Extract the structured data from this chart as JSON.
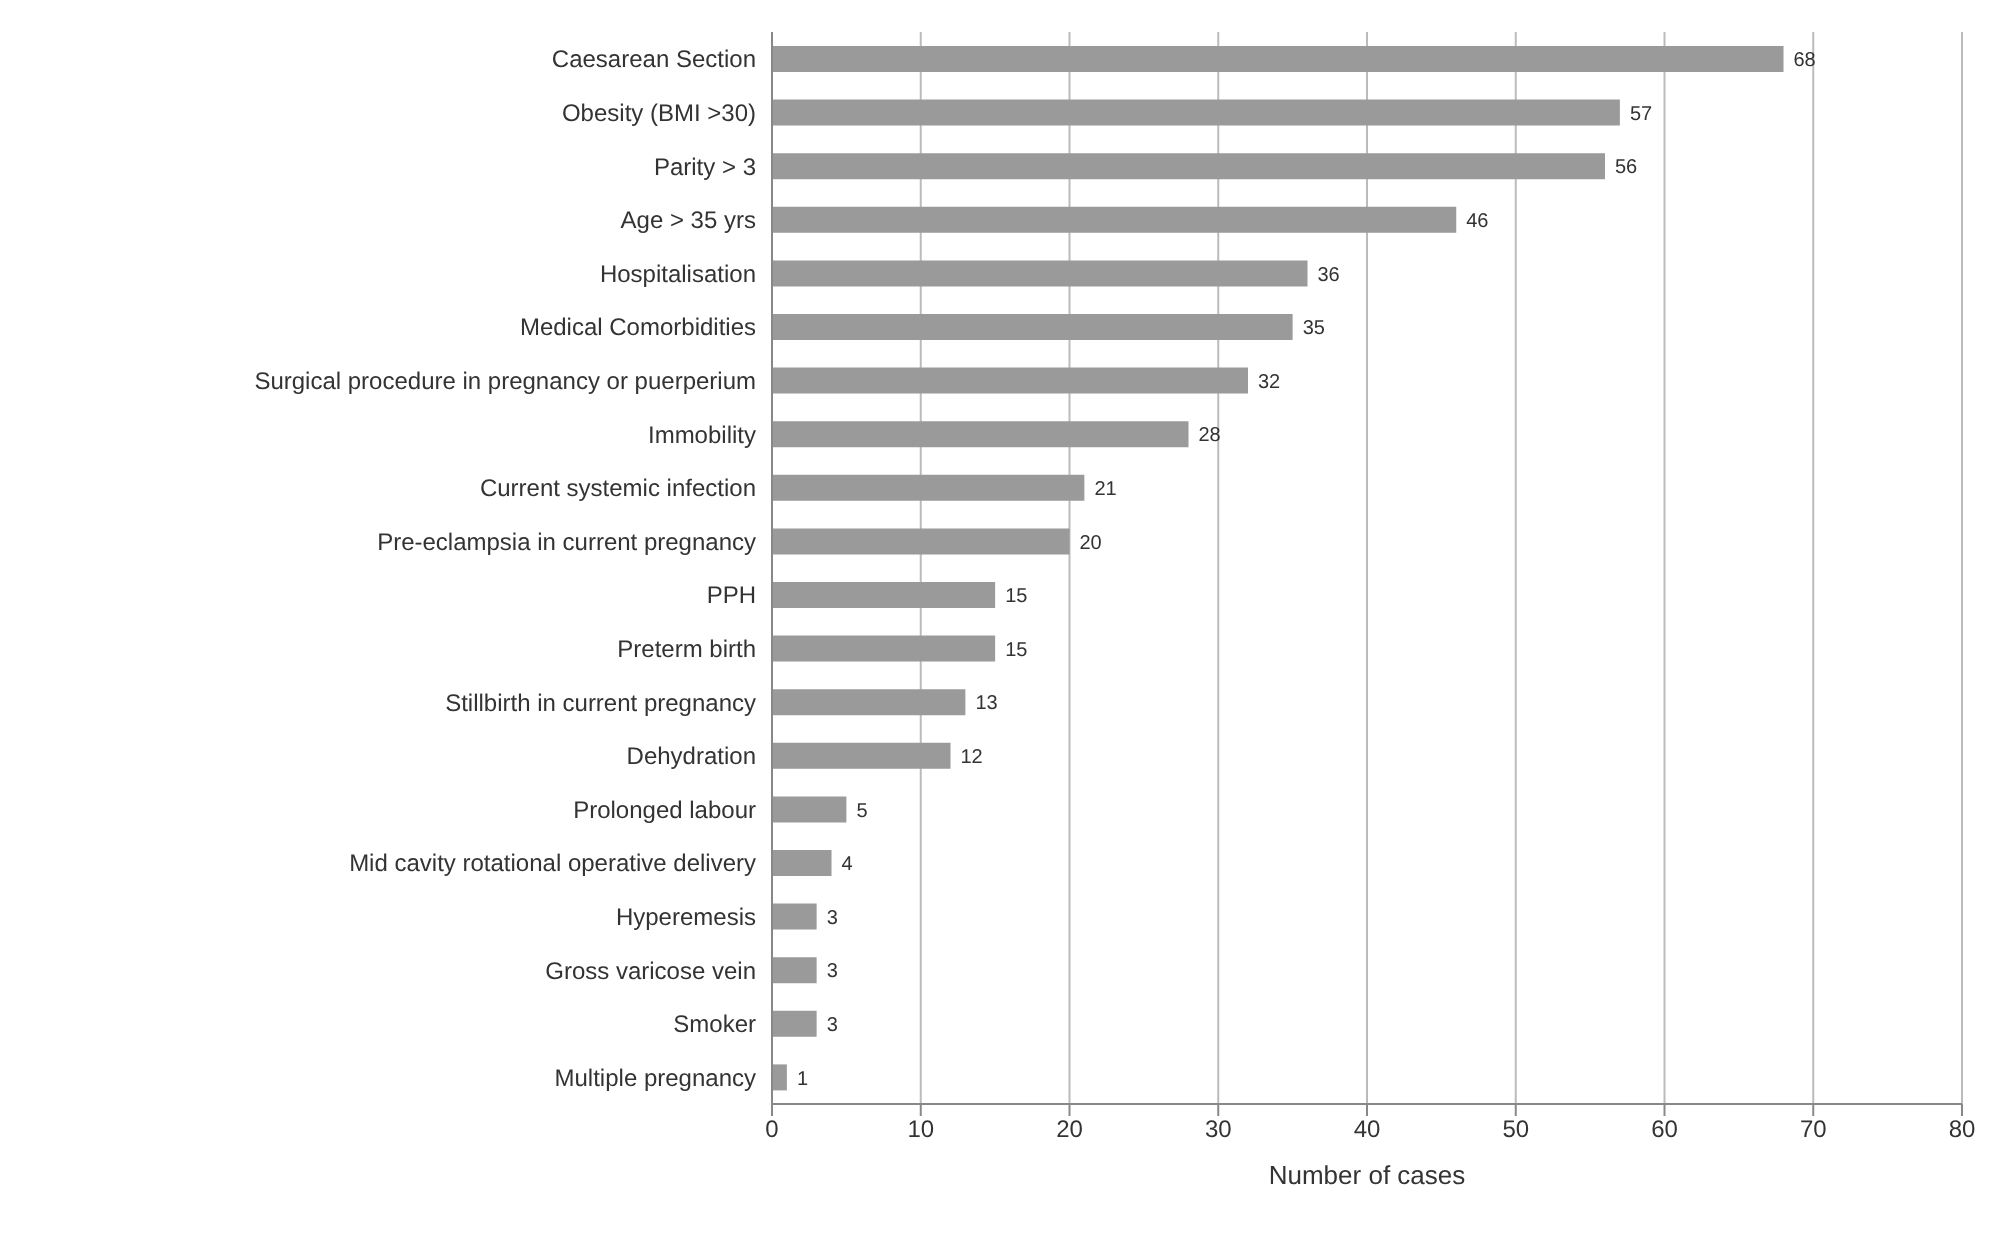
{
  "chart_data": {
    "type": "bar",
    "orientation": "horizontal",
    "xlabel": "Number of cases",
    "categories": [
      "Caesarean Section",
      "Obesity (BMI >30)",
      "Parity > 3",
      "Age > 35 yrs",
      "Hospitalisation",
      "Medical Comorbidities",
      "Surgical procedure in pregnancy or puerperium",
      "Immobility",
      "Current systemic infection",
      "Pre-eclampsia in current pregnancy",
      "PPH",
      "Preterm birth",
      "Stillbirth in current pregnancy",
      "Dehydration",
      "Prolonged labour",
      "Mid cavity rotational operative delivery",
      "Hyperemesis",
      "Gross varicose vein",
      "Smoker",
      "Multiple pregnancy"
    ],
    "values": [
      68,
      57,
      56,
      46,
      36,
      35,
      32,
      28,
      21,
      20,
      15,
      15,
      13,
      12,
      5,
      4,
      3,
      3,
      3,
      1
    ],
    "color": "#9a9a9a",
    "xlim": [
      0,
      80
    ],
    "xticks": [
      0,
      10,
      20,
      30,
      40,
      50,
      60,
      70,
      80
    ],
    "grid": "x",
    "data_labels": true
  }
}
